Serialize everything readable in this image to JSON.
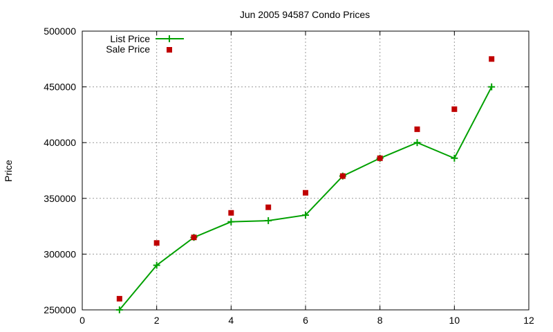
{
  "chart_data": {
    "type": "line",
    "title": "Jun 2005 94587 Condo Prices",
    "xlabel": "",
    "ylabel": "Price",
    "xlim": [
      0,
      12
    ],
    "ylim": [
      250000,
      500000
    ],
    "x_ticks": [
      0,
      2,
      4,
      6,
      8,
      10,
      12
    ],
    "y_ticks": [
      250000,
      300000,
      350000,
      400000,
      450000,
      500000
    ],
    "grid": true,
    "legend_position": "top-left",
    "series": [
      {
        "name": "List Price",
        "style": "line-with-plus-markers",
        "color": "#00a000",
        "x": [
          1,
          2,
          3,
          4,
          5,
          6,
          7,
          8,
          9,
          10,
          11
        ],
        "y": [
          250000,
          290000,
          315000,
          329000,
          330000,
          335000,
          370000,
          386000,
          400000,
          386000,
          450000
        ]
      },
      {
        "name": "Sale Price",
        "style": "square-markers",
        "color": "#c00000",
        "x": [
          1,
          2,
          3,
          4,
          5,
          6,
          7,
          8,
          9,
          10,
          11
        ],
        "y": [
          260000,
          310000,
          315000,
          337000,
          342000,
          355000,
          370000,
          386000,
          412000,
          430000,
          475000
        ]
      }
    ]
  }
}
